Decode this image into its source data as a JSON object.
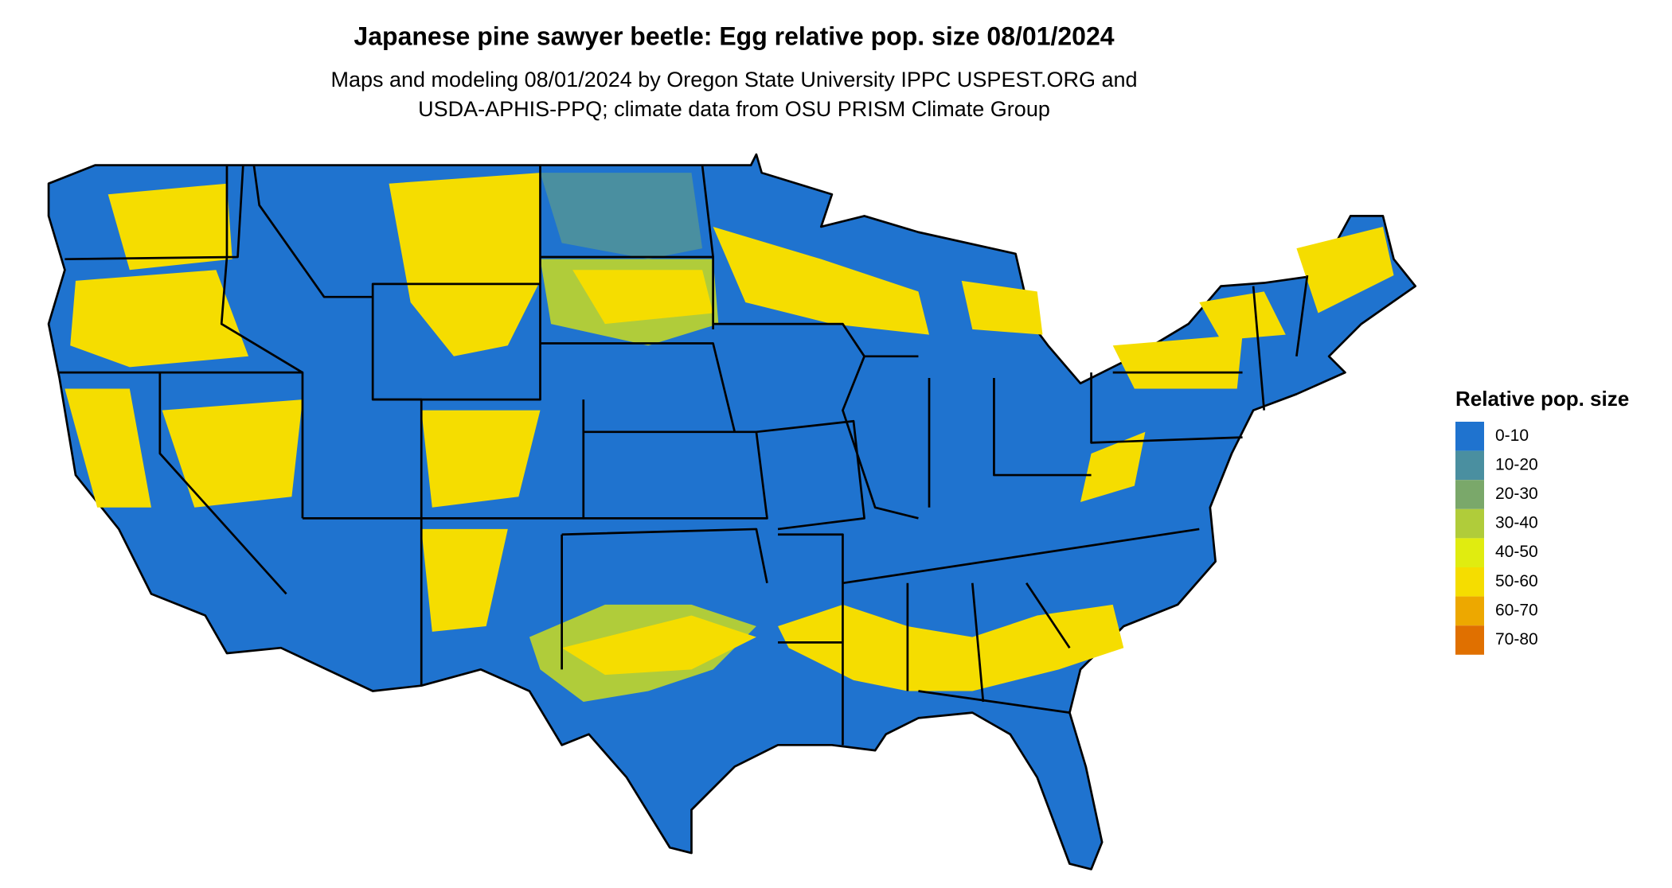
{
  "header": {
    "title": "Japanese pine sawyer beetle: Egg relative pop. size 08/01/2024",
    "subtitle": [
      "Maps and modeling 08/01/2024 by Oregon State University IPPC USPEST.ORG and",
      "USDA-APHIS-PPQ; climate data from OSU PRISM Climate Group"
    ]
  },
  "legend": {
    "title": "Relative pop. size",
    "items": [
      {
        "label": "0-10",
        "color": "#1f73cf"
      },
      {
        "label": "10-20",
        "color": "#4a8fa0"
      },
      {
        "label": "20-30",
        "color": "#7aa86a"
      },
      {
        "label": "30-40",
        "color": "#b0cc3a"
      },
      {
        "label": "40-50",
        "color": "#e0ec10"
      },
      {
        "label": "50-60",
        "color": "#f5dd00"
      },
      {
        "label": "60-70",
        "color": "#eda800"
      },
      {
        "label": "70-80",
        "color": "#e07000"
      }
    ]
  }
}
